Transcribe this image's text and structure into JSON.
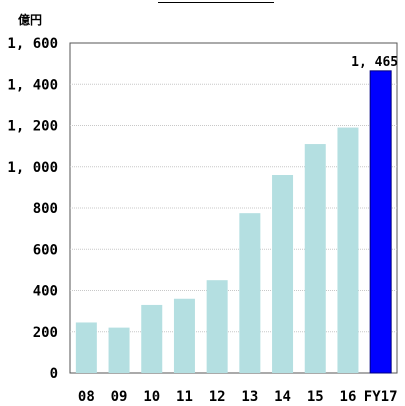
{
  "unit_label": "億円",
  "chart_data": {
    "type": "bar",
    "title": "",
    "xlabel": "",
    "ylabel": "億円",
    "categories": [
      "08",
      "09",
      "10",
      "11",
      "12",
      "13",
      "14",
      "15",
      "16",
      "FY17"
    ],
    "values": [
      245,
      220,
      330,
      360,
      450,
      775,
      960,
      1110,
      1190,
      1465
    ],
    "ylim": [
      0,
      1600
    ],
    "yticks": [
      0,
      200,
      400,
      600,
      800,
      1000,
      1200,
      1400,
      1600
    ],
    "ytick_labels": [
      "0",
      "200",
      "400",
      "600",
      "800",
      "1, 000",
      "1, 200",
      "1, 400",
      "1, 600"
    ],
    "grid": true,
    "legend": "none",
    "colors": {
      "default_bar": "#b4dfe1",
      "highlight_bar": "#0000ff",
      "grid": "#c8c8c8",
      "axis": "#000000"
    },
    "highlight_index": 9,
    "data_labels": [
      {
        "index": 9,
        "text": "1, 465"
      }
    ]
  }
}
